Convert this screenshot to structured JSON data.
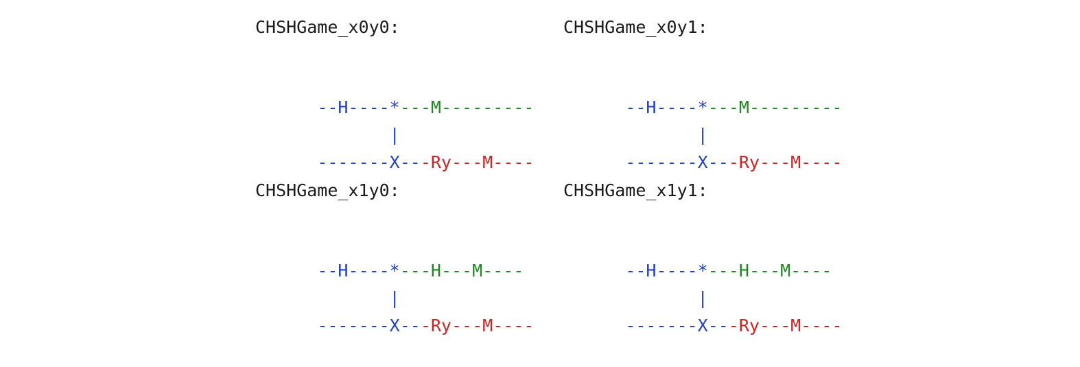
{
  "panels": [
    {
      "title": "CHSHGame_x0y0:",
      "lines": [
        [
          {
            "text": "--H----*",
            "color": "blue"
          },
          {
            "text": "---M---------",
            "color": "green"
          }
        ],
        [
          {
            "text": "       |",
            "color": "blue"
          }
        ],
        [
          {
            "text": "-------X--",
            "color": "blue"
          },
          {
            "text": "-Ry---M----",
            "color": "red"
          }
        ]
      ]
    },
    {
      "title": "CHSHGame_x0y1:",
      "lines": [
        [
          {
            "text": "--H----*",
            "color": "blue"
          },
          {
            "text": "---M---------",
            "color": "green"
          }
        ],
        [
          {
            "text": "       |",
            "color": "blue"
          }
        ],
        [
          {
            "text": "-------X--",
            "color": "blue"
          },
          {
            "text": "-Ry---M----",
            "color": "red"
          }
        ]
      ]
    },
    {
      "title": "CHSHGame_x1y0:",
      "lines": [
        [
          {
            "text": "--H----*",
            "color": "blue"
          },
          {
            "text": "---H---M----",
            "color": "green"
          }
        ],
        [
          {
            "text": "       |",
            "color": "blue"
          }
        ],
        [
          {
            "text": "-------X--",
            "color": "blue"
          },
          {
            "text": "-Ry---M----",
            "color": "red"
          }
        ]
      ]
    },
    {
      "title": "CHSHGame_x1y1:",
      "lines": [
        [
          {
            "text": "--H----*",
            "color": "blue"
          },
          {
            "text": "---H---M----",
            "color": "green"
          }
        ],
        [
          {
            "text": "       |",
            "color": "blue"
          }
        ],
        [
          {
            "text": "-------X--",
            "color": "blue"
          },
          {
            "text": "-Ry---M----",
            "color": "red"
          }
        ]
      ]
    }
  ],
  "colors": {
    "blue": "#1f3fd6",
    "green": "#1f8a1f",
    "red": "#d61f1f",
    "title": "#1a1a1a"
  }
}
